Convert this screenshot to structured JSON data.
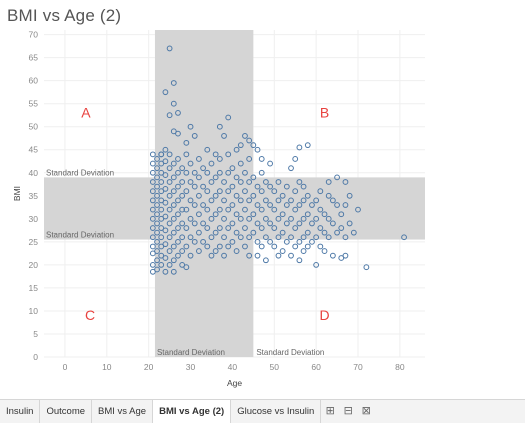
{
  "sheet_title": "BMI vs Age (2)",
  "tabs": [
    {
      "label": "Insulin",
      "active": false
    },
    {
      "label": "Outcome",
      "active": false
    },
    {
      "label": "BMI vs Age",
      "active": false
    },
    {
      "label": "BMI vs Age (2)",
      "active": true
    },
    {
      "label": "Glucose vs Insulin",
      "active": false
    }
  ],
  "tab_icons": [
    "new-worksheet-icon",
    "new-dashboard-icon",
    "new-story-icon"
  ],
  "colors": {
    "point_stroke": "#4e79a7",
    "band_fill": "#d5d5d5",
    "quadrant_label": "#e8423f",
    "axis_text": "#888888",
    "grid": "#efefef"
  },
  "chart_data": {
    "type": "scatter",
    "title": "BMI vs Age (2)",
    "xlabel": "Age",
    "ylabel": "BMI",
    "xlim": [
      -5,
      86
    ],
    "ylim": [
      0,
      71
    ],
    "xticks": [
      0,
      10,
      20,
      30,
      40,
      50,
      60,
      70,
      80
    ],
    "yticks": [
      0,
      5,
      10,
      15,
      20,
      25,
      30,
      35,
      40,
      45,
      50,
      55,
      60,
      65,
      70
    ],
    "grid": true,
    "reference_bands": [
      {
        "axis": "x",
        "from": 21.5,
        "to": 45,
        "label": "Standard Deviation"
      },
      {
        "axis": "y",
        "from": 25.5,
        "to": 39,
        "label": "Standard Deviation"
      }
    ],
    "band_labels": {
      "y_upper": "Standard Deviation",
      "y_lower": "Standard Deviation",
      "x_left": "Standard Deviation",
      "x_right": "Standard Deviation"
    },
    "quadrants": [
      {
        "label": "A",
        "x": 5,
        "y": 52
      },
      {
        "label": "B",
        "x": 62,
        "y": 52
      },
      {
        "label": "C",
        "x": 6,
        "y": 8
      },
      {
        "label": "D",
        "x": 62,
        "y": 8
      }
    ],
    "points": [
      [
        25,
        67
      ],
      [
        24,
        57.5
      ],
      [
        26,
        59.5
      ],
      [
        26,
        55
      ],
      [
        25,
        52.5
      ],
      [
        27,
        53
      ],
      [
        30,
        50
      ],
      [
        31,
        48
      ],
      [
        29,
        46.5
      ],
      [
        37,
        50
      ],
      [
        39,
        52
      ],
      [
        38,
        48
      ],
      [
        43,
        48
      ],
      [
        44,
        47
      ],
      [
        45,
        46
      ],
      [
        46,
        45
      ],
      [
        56,
        45.5
      ],
      [
        58,
        46
      ],
      [
        55,
        43
      ],
      [
        26,
        49
      ],
      [
        27,
        48.5
      ],
      [
        24,
        45
      ],
      [
        23,
        44
      ],
      [
        34,
        45
      ],
      [
        36,
        44
      ],
      [
        41,
        45
      ],
      [
        42,
        46
      ],
      [
        47,
        43
      ],
      [
        49,
        42
      ],
      [
        54,
        41
      ],
      [
        22,
        43
      ],
      [
        22,
        41
      ],
      [
        22,
        39
      ],
      [
        22,
        37
      ],
      [
        22,
        35
      ],
      [
        22,
        33
      ],
      [
        22,
        31
      ],
      [
        22,
        29
      ],
      [
        22,
        27
      ],
      [
        22,
        25
      ],
      [
        22,
        23
      ],
      [
        22,
        21
      ],
      [
        22,
        19
      ],
      [
        21,
        18.5
      ],
      [
        21,
        20
      ],
      [
        21,
        22.5
      ],
      [
        21,
        24
      ],
      [
        21,
        26
      ],
      [
        21,
        28
      ],
      [
        21,
        30
      ],
      [
        21,
        32
      ],
      [
        21,
        34
      ],
      [
        21,
        36
      ],
      [
        21,
        38
      ],
      [
        21,
        40
      ],
      [
        21,
        42
      ],
      [
        21,
        44
      ],
      [
        23,
        44
      ],
      [
        23,
        42
      ],
      [
        23,
        40
      ],
      [
        23,
        38
      ],
      [
        23,
        36
      ],
      [
        23,
        34
      ],
      [
        23,
        32
      ],
      [
        23,
        30
      ],
      [
        23,
        28
      ],
      [
        23,
        26
      ],
      [
        23,
        24
      ],
      [
        23,
        22
      ],
      [
        23,
        20
      ],
      [
        24,
        42.5
      ],
      [
        24,
        39.5
      ],
      [
        24,
        36.5
      ],
      [
        24,
        33.5
      ],
      [
        24,
        30.5
      ],
      [
        24,
        27.5
      ],
      [
        24,
        24.5
      ],
      [
        24,
        21.5
      ],
      [
        24,
        18.5
      ],
      [
        25,
        44
      ],
      [
        25,
        41
      ],
      [
        25,
        38
      ],
      [
        25,
        35
      ],
      [
        25,
        32
      ],
      [
        25,
        29
      ],
      [
        25,
        26
      ],
      [
        25,
        23
      ],
      [
        25,
        20
      ],
      [
        26,
        42
      ],
      [
        26,
        39
      ],
      [
        26,
        36
      ],
      [
        26,
        33
      ],
      [
        26,
        30
      ],
      [
        26,
        27
      ],
      [
        26,
        24
      ],
      [
        26,
        21
      ],
      [
        26,
        18.5
      ],
      [
        27,
        43
      ],
      [
        27,
        40
      ],
      [
        27,
        37
      ],
      [
        27,
        34
      ],
      [
        27,
        31
      ],
      [
        27,
        28
      ],
      [
        27,
        25
      ],
      [
        27,
        22
      ],
      [
        28,
        41
      ],
      [
        28,
        38
      ],
      [
        28,
        35
      ],
      [
        28,
        32
      ],
      [
        28,
        29
      ],
      [
        28,
        26
      ],
      [
        28,
        23
      ],
      [
        28,
        20
      ],
      [
        29,
        44
      ],
      [
        29,
        40
      ],
      [
        29,
        36
      ],
      [
        29,
        32
      ],
      [
        29,
        28
      ],
      [
        29,
        24
      ],
      [
        29,
        19.5
      ],
      [
        30,
        42
      ],
      [
        30,
        38
      ],
      [
        30,
        34
      ],
      [
        30,
        30
      ],
      [
        30,
        26
      ],
      [
        30,
        22
      ],
      [
        31,
        40
      ],
      [
        31,
        37
      ],
      [
        31,
        33
      ],
      [
        31,
        29
      ],
      [
        31,
        25
      ],
      [
        32,
        43
      ],
      [
        32,
        39
      ],
      [
        32,
        35
      ],
      [
        32,
        31
      ],
      [
        32,
        27
      ],
      [
        32,
        23
      ],
      [
        33,
        41
      ],
      [
        33,
        37
      ],
      [
        33,
        33
      ],
      [
        33,
        29
      ],
      [
        33,
        25
      ],
      [
        34,
        40
      ],
      [
        34,
        36
      ],
      [
        34,
        32
      ],
      [
        34,
        28
      ],
      [
        34,
        24
      ],
      [
        35,
        42
      ],
      [
        35,
        38
      ],
      [
        35,
        34
      ],
      [
        35,
        30
      ],
      [
        35,
        26
      ],
      [
        35,
        22
      ],
      [
        36,
        39
      ],
      [
        36,
        35
      ],
      [
        36,
        31
      ],
      [
        36,
        27
      ],
      [
        36,
        23
      ],
      [
        37,
        43
      ],
      [
        37,
        40
      ],
      [
        37,
        36
      ],
      [
        37,
        32
      ],
      [
        37,
        28
      ],
      [
        37,
        24
      ],
      [
        38,
        38
      ],
      [
        38,
        34
      ],
      [
        38,
        30
      ],
      [
        38,
        26
      ],
      [
        38,
        22
      ],
      [
        39,
        44
      ],
      [
        39,
        40
      ],
      [
        39,
        36
      ],
      [
        39,
        32
      ],
      [
        39,
        28
      ],
      [
        39,
        24
      ],
      [
        40,
        41
      ],
      [
        40,
        37
      ],
      [
        40,
        33
      ],
      [
        40,
        29
      ],
      [
        40,
        25
      ],
      [
        41,
        39
      ],
      [
        41,
        35
      ],
      [
        41,
        31
      ],
      [
        41,
        27
      ],
      [
        41,
        23
      ],
      [
        42,
        42
      ],
      [
        42,
        38
      ],
      [
        42,
        34
      ],
      [
        42,
        30
      ],
      [
        42,
        26
      ],
      [
        43,
        40
      ],
      [
        43,
        36
      ],
      [
        43,
        32
      ],
      [
        43,
        28
      ],
      [
        43,
        24
      ],
      [
        44,
        43
      ],
      [
        44,
        38
      ],
      [
        44,
        34
      ],
      [
        44,
        30
      ],
      [
        44,
        26
      ],
      [
        44,
        22
      ],
      [
        45,
        39
      ],
      [
        45,
        35
      ],
      [
        45,
        31
      ],
      [
        45,
        27
      ],
      [
        46,
        37
      ],
      [
        46,
        33
      ],
      [
        46,
        29
      ],
      [
        46,
        25
      ],
      [
        46,
        22
      ],
      [
        47,
        40
      ],
      [
        47,
        36
      ],
      [
        47,
        32
      ],
      [
        47,
        28
      ],
      [
        47,
        24
      ],
      [
        48,
        38
      ],
      [
        48,
        34
      ],
      [
        48,
        30
      ],
      [
        48,
        26
      ],
      [
        48,
        21
      ],
      [
        49,
        37
      ],
      [
        49,
        33
      ],
      [
        49,
        29
      ],
      [
        49,
        25
      ],
      [
        50,
        36
      ],
      [
        50,
        32
      ],
      [
        50,
        28
      ],
      [
        50,
        24
      ],
      [
        51,
        38
      ],
      [
        51,
        34
      ],
      [
        51,
        30
      ],
      [
        51,
        26
      ],
      [
        51,
        22
      ],
      [
        52,
        35
      ],
      [
        52,
        31
      ],
      [
        52,
        27
      ],
      [
        52,
        23
      ],
      [
        53,
        37
      ],
      [
        53,
        33
      ],
      [
        53,
        29
      ],
      [
        53,
        25
      ],
      [
        54,
        34
      ],
      [
        54,
        30
      ],
      [
        54,
        26
      ],
      [
        54,
        22
      ],
      [
        55,
        36
      ],
      [
        55,
        32
      ],
      [
        55,
        28
      ],
      [
        55,
        24
      ],
      [
        56,
        38
      ],
      [
        56,
        33
      ],
      [
        56,
        29
      ],
      [
        56,
        25
      ],
      [
        56,
        21
      ],
      [
        57,
        37
      ],
      [
        57,
        34
      ],
      [
        57,
        30
      ],
      [
        57,
        26
      ],
      [
        57,
        23
      ],
      [
        58,
        35
      ],
      [
        58,
        31
      ],
      [
        58,
        27
      ],
      [
        58,
        24
      ],
      [
        59,
        33
      ],
      [
        59,
        29
      ],
      [
        59,
        25
      ],
      [
        60,
        34
      ],
      [
        60,
        30
      ],
      [
        60,
        26
      ],
      [
        60,
        20
      ],
      [
        61,
        36
      ],
      [
        61,
        32
      ],
      [
        61,
        28
      ],
      [
        61,
        24
      ],
      [
        62,
        31
      ],
      [
        62,
        27
      ],
      [
        62,
        23
      ],
      [
        63,
        38
      ],
      [
        63,
        35
      ],
      [
        63,
        30
      ],
      [
        63,
        26
      ],
      [
        64,
        34
      ],
      [
        64,
        29
      ],
      [
        64,
        22
      ],
      [
        65,
        39
      ],
      [
        65,
        33
      ],
      [
        65,
        27
      ],
      [
        66,
        31
      ],
      [
        66,
        28
      ],
      [
        66,
        21.5
      ],
      [
        67,
        38
      ],
      [
        67,
        33
      ],
      [
        67,
        26
      ],
      [
        67,
        22
      ],
      [
        68,
        35
      ],
      [
        68,
        29
      ],
      [
        69,
        27
      ],
      [
        70,
        32
      ],
      [
        72,
        19.5
      ],
      [
        81,
        26
      ]
    ]
  }
}
